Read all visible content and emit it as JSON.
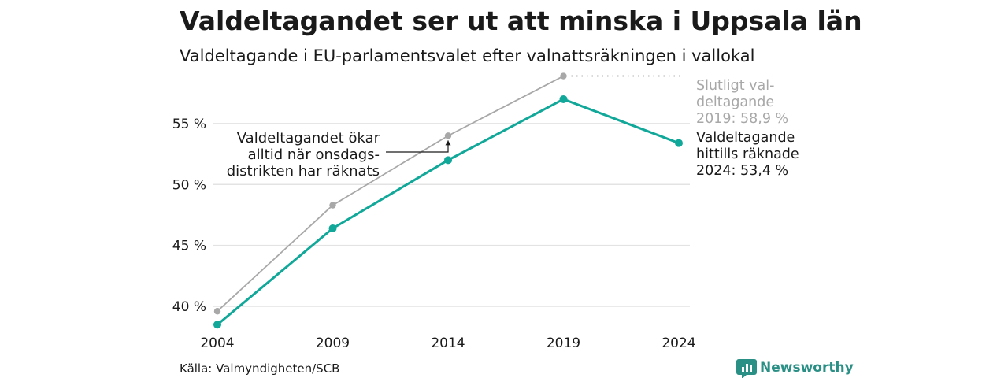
{
  "title": "Valdeltagandet ser ut att minska i Uppsala län",
  "subtitle": "Valdeltagande i EU-parlamentsvalet efter valnattsräkningen i vallokal",
  "source": "Källa: Valmyndigheten/SCB",
  "brand": "Newsworthy",
  "colors": {
    "current": "#11a89a",
    "final": "#a8a8a8",
    "brand": "#2a8f85"
  },
  "chart_data": {
    "type": "line",
    "categories": [
      "2004",
      "2009",
      "2014",
      "2019",
      "2024"
    ],
    "x": [
      2004,
      2009,
      2014,
      2019,
      2024
    ],
    "ylim": [
      38,
      59
    ],
    "yticks": [
      40,
      45,
      50,
      55
    ],
    "ytick_labels": [
      "40 %",
      "45 %",
      "50 %",
      "55 %"
    ],
    "grid": true,
    "series": [
      {
        "key": "final",
        "values": [
          39.6,
          48.3,
          54.0,
          58.9,
          null
        ],
        "label_lines": [
          "Slutligt val-",
          "deltagande",
          "2019: 58,9 %"
        ]
      },
      {
        "key": "current",
        "values": [
          38.5,
          46.4,
          52.0,
          57.0,
          53.4
        ],
        "label_lines": [
          "Valdeltagande",
          "hittills räknade",
          "2024: 53,4 %"
        ]
      }
    ],
    "annotation": {
      "lines": [
        "Valdeltagandet ökar",
        "alltid när onsdags-",
        "distrikten har räknats"
      ]
    }
  }
}
